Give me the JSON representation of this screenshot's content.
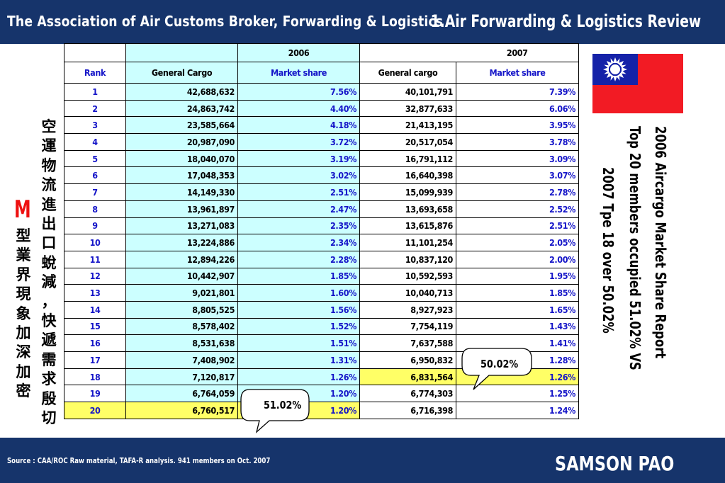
{
  "header": {
    "title": "The Association of Air Customs Broker, Forwarding & Logistics",
    "section": "1.Air Forwarding & Logistics Review"
  },
  "footer": {
    "source": "Source : CAA/ROC Raw material, TAFA-R analysis.  941 members on Oct. 2007",
    "author": "SAMSON PAO"
  },
  "table": {
    "year_2006": "2006",
    "year_2007": "2007",
    "col_rank": "Rank",
    "col_gc_2006": "General Cargo",
    "col_ms_2006": "Market share",
    "col_gc_2007": "General cargo",
    "col_ms_2007": "Market share",
    "rows": [
      {
        "rank": "1",
        "gc06": "42,688,632",
        "ms06": "7.56%",
        "gc07": "40,101,791",
        "ms07": "7.39%"
      },
      {
        "rank": "2",
        "gc06": "24,863,742",
        "ms06": "4.40%",
        "gc07": "32,877,633",
        "ms07": "6.06%"
      },
      {
        "rank": "3",
        "gc06": "23,585,664",
        "ms06": "4.18%",
        "gc07": "21,413,195",
        "ms07": "3.95%"
      },
      {
        "rank": "4",
        "gc06": "20,987,090",
        "ms06": "3.72%",
        "gc07": "20,517,054",
        "ms07": "3.78%"
      },
      {
        "rank": "5",
        "gc06": "18,040,070",
        "ms06": "3.19%",
        "gc07": "16,791,112",
        "ms07": "3.09%"
      },
      {
        "rank": "6",
        "gc06": "17,048,353",
        "ms06": "3.02%",
        "gc07": "16,640,398",
        "ms07": "3.07%"
      },
      {
        "rank": "7",
        "gc06": "14,149,330",
        "ms06": "2.51%",
        "gc07": "15,099,939",
        "ms07": "2.78%"
      },
      {
        "rank": "8",
        "gc06": "13,961,897",
        "ms06": "2.47%",
        "gc07": "13,693,658",
        "ms07": "2.52%"
      },
      {
        "rank": "9",
        "gc06": "13,271,083",
        "ms06": "2.35%",
        "gc07": "13,615,876",
        "ms07": "2.51%"
      },
      {
        "rank": "10",
        "gc06": "13,224,886",
        "ms06": "2.34%",
        "gc07": "11,101,254",
        "ms07": "2.05%"
      },
      {
        "rank": "11",
        "gc06": "12,894,226",
        "ms06": "2.28%",
        "gc07": "10,837,120",
        "ms07": "2.00%"
      },
      {
        "rank": "12",
        "gc06": "10,442,907",
        "ms06": "1.85%",
        "gc07": "10,592,593",
        "ms07": "1.95%"
      },
      {
        "rank": "13",
        "gc06": "9,021,801",
        "ms06": "1.60%",
        "gc07": "10,040,713",
        "ms07": "1.85%"
      },
      {
        "rank": "14",
        "gc06": "8,805,525",
        "ms06": "1.56%",
        "gc07": "8,927,923",
        "ms07": "1.65%"
      },
      {
        "rank": "15",
        "gc06": "8,578,402",
        "ms06": "1.52%",
        "gc07": "7,754,119",
        "ms07": "1.43%"
      },
      {
        "rank": "16",
        "gc06": "8,531,638",
        "ms06": "1.51%",
        "gc07": "7,637,588",
        "ms07": "1.41%"
      },
      {
        "rank": "17",
        "gc06": "7,408,902",
        "ms06": "1.31%",
        "gc07": "6,950,832",
        "ms07": "1.28%"
      },
      {
        "rank": "18",
        "gc06": "7,120,817",
        "ms06": "1.26%",
        "gc07": "6,831,564",
        "ms07": "1.26%"
      },
      {
        "rank": "19",
        "gc06": "6,764,059",
        "ms06": "1.20%",
        "gc07": "6,774,303",
        "ms07": "1.25%"
      },
      {
        "rank": "20",
        "gc06": "6,760,517",
        "ms06": "1.20%",
        "gc07": "6,716,398",
        "ms07": "1.24%"
      }
    ]
  },
  "callouts": {
    "share_2006": "51.02%",
    "share_2007": "50.02%"
  },
  "side_note": {
    "line1": "2006 Aircargo Market Share Report",
    "line2": "Top 20 members occupied 51.02% VS",
    "line3": "2007 Tpe 18 over 50.02%"
  },
  "chinese_note": {
    "col_right": [
      "空",
      "運",
      "物",
      "流",
      "進",
      "出",
      "口",
      "蛻",
      "減",
      "，",
      "快",
      "遞",
      "需",
      "求",
      "殷",
      "切"
    ],
    "m_letter": "M",
    "col_left": [
      "型",
      "業",
      "界",
      "現",
      "象",
      "加",
      "深",
      "加",
      "密"
    ]
  },
  "colors": {
    "banner": "#16346b",
    "highlight_2006": "#ccffff",
    "highlight_top": "#ffff66",
    "share_text": "#1515c8",
    "flag_red": "#f21b24",
    "flag_blue": "#1522a8"
  },
  "icons": {
    "flag": "taiwan-flag-icon"
  }
}
